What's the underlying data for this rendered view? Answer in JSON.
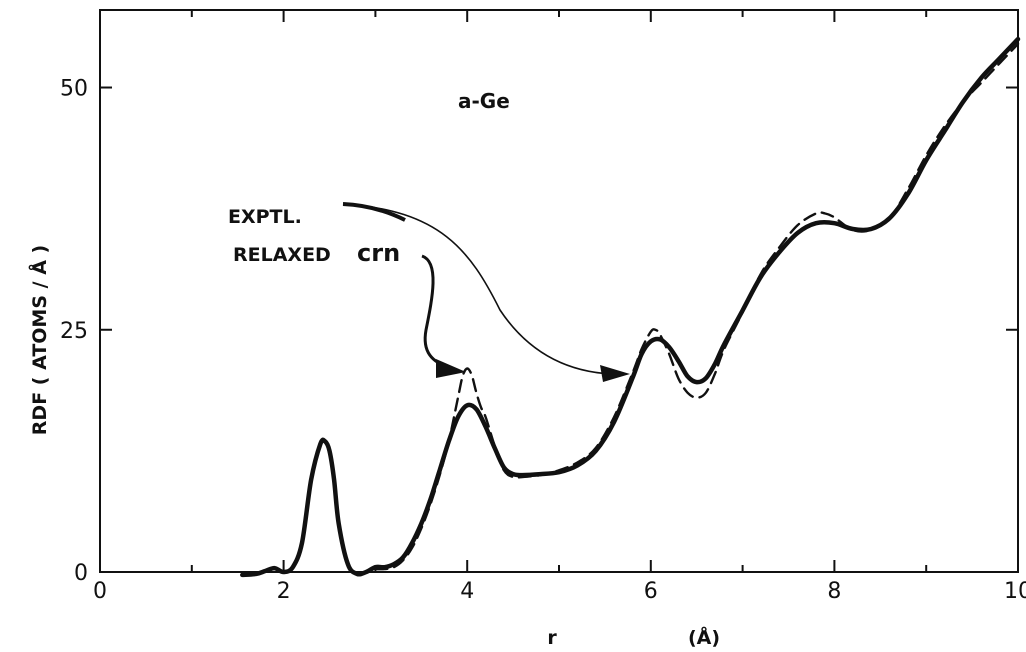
{
  "chart_data": {
    "type": "line",
    "title": "",
    "sample_label": "a-Ge",
    "xlabel": "r",
    "xunit": "(Å)",
    "ylabel": "RDF ( ATOMS / Å )",
    "xlim": [
      0,
      10
    ],
    "ylim": [
      0,
      58
    ],
    "xticks": [
      0,
      2,
      4,
      6,
      8,
      10
    ],
    "xtick_labels": [
      "0",
      "2",
      "4",
      "6",
      "8",
      "10"
    ],
    "yticks": [
      0,
      25,
      50
    ],
    "ytick_labels": [
      "0",
      "25",
      "50"
    ],
    "grid": false,
    "annotations": [
      {
        "text": "EXPTL."
      },
      {
        "text": "RELAXED",
        "suffix": "crn"
      }
    ],
    "series": [
      {
        "name": "EXPTL.",
        "style": "solid",
        "x": [
          1.55,
          1.7,
          1.8,
          1.9,
          2.0,
          2.1,
          2.2,
          2.3,
          2.4,
          2.45,
          2.5,
          2.55,
          2.6,
          2.7,
          2.8,
          2.9,
          3.0,
          3.1,
          3.2,
          3.3,
          3.4,
          3.5,
          3.6,
          3.7,
          3.8,
          3.9,
          4.0,
          4.1,
          4.2,
          4.3,
          4.4,
          4.5,
          4.6,
          4.8,
          5.0,
          5.2,
          5.4,
          5.6,
          5.8,
          5.9,
          6.0,
          6.1,
          6.2,
          6.3,
          6.4,
          6.5,
          6.6,
          6.7,
          6.8,
          7.0,
          7.2,
          7.4,
          7.6,
          7.8,
          8.0,
          8.2,
          8.4,
          8.6,
          8.8,
          9.0,
          9.2,
          9.4,
          9.6,
          9.8,
          10.0
        ],
        "y": [
          -0.3,
          -0.2,
          0.1,
          0.4,
          0.0,
          0.5,
          3.0,
          9.5,
          13.2,
          13.5,
          12.5,
          9.5,
          5.0,
          0.8,
          -0.2,
          0.0,
          0.5,
          0.5,
          0.8,
          1.5,
          3.0,
          5.0,
          7.5,
          10.5,
          13.5,
          16.0,
          17.2,
          16.8,
          15.0,
          12.8,
          10.8,
          10.1,
          10.0,
          10.1,
          10.3,
          11.0,
          12.5,
          15.5,
          20.0,
          22.5,
          23.8,
          24.0,
          23.2,
          21.8,
          20.2,
          19.6,
          20.0,
          21.5,
          23.5,
          27.0,
          30.5,
          33.0,
          35.0,
          36.0,
          36.0,
          35.4,
          35.4,
          36.5,
          39.0,
          42.5,
          45.5,
          48.5,
          51.0,
          53.0,
          55.0
        ]
      },
      {
        "name": "RELAXED crn",
        "style": "dashed",
        "x": [
          3.0,
          3.1,
          3.2,
          3.3,
          3.4,
          3.5,
          3.6,
          3.7,
          3.8,
          3.9,
          3.95,
          4.0,
          4.05,
          4.1,
          4.15,
          4.2,
          4.3,
          4.4,
          4.5,
          4.6,
          4.8,
          5.0,
          5.2,
          5.4,
          5.6,
          5.8,
          5.9,
          6.0,
          6.05,
          6.1,
          6.2,
          6.3,
          6.4,
          6.5,
          6.6,
          6.7,
          6.8,
          7.0,
          7.2,
          7.4,
          7.6,
          7.8,
          7.9,
          8.0,
          8.2,
          8.4,
          8.6,
          8.8,
          9.0,
          9.2,
          9.4,
          9.6,
          9.8,
          10.0
        ],
        "y": [
          0.3,
          0.3,
          0.5,
          1.2,
          2.5,
          4.5,
          7.0,
          10.0,
          13.5,
          18.0,
          20.2,
          21.0,
          20.3,
          18.5,
          17.0,
          16.0,
          13.0,
          10.5,
          9.8,
          9.8,
          10.0,
          10.5,
          11.3,
          12.8,
          16.0,
          20.5,
          23.0,
          24.8,
          25.0,
          24.5,
          22.5,
          20.0,
          18.5,
          18.0,
          18.5,
          20.5,
          23.0,
          26.8,
          30.8,
          33.5,
          35.8,
          37.0,
          37.0,
          36.6,
          35.3,
          35.3,
          36.5,
          39.5,
          43.0,
          46.0,
          48.5,
          50.5,
          52.5,
          54.5
        ]
      }
    ]
  }
}
